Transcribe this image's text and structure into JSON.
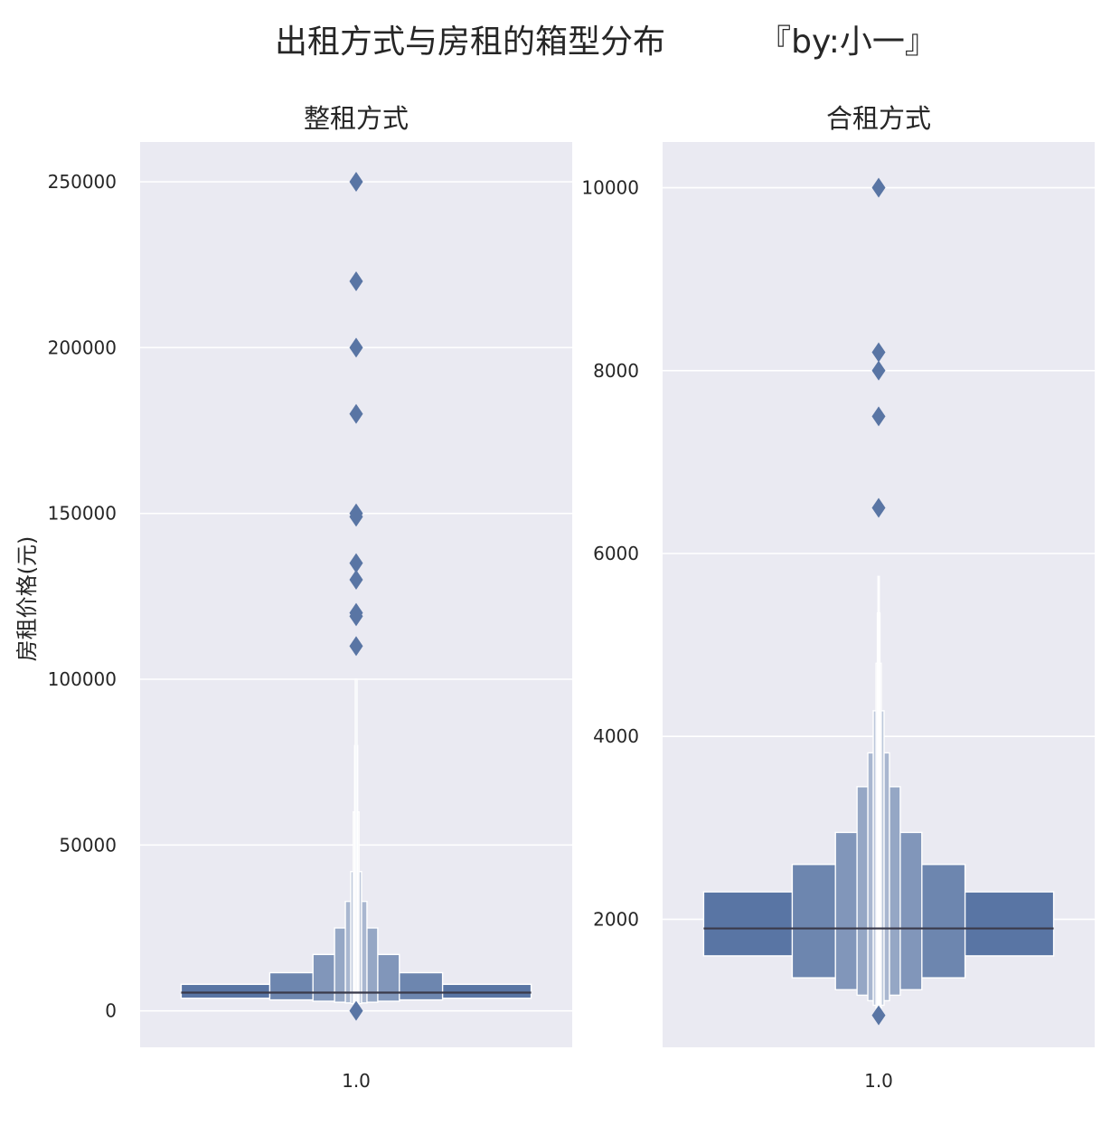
{
  "figure": {
    "title": "出租方式与房租的箱型分布",
    "author": "『by:小一』",
    "ylabel": "房租价格(元)"
  },
  "colors": {
    "background": "#eaeaf2",
    "grid": "#ffffff",
    "box_fill": "#5975a4",
    "outlier": "#5975a4",
    "median": "#3a3a4a"
  },
  "chart_data": [
    {
      "type": "boxenplot",
      "title": "整租方式",
      "xlabel": "",
      "categories": [
        "1.0"
      ],
      "ylim": [
        -11000,
        262000
      ],
      "yticks": [
        0,
        50000,
        100000,
        150000,
        200000,
        250000
      ],
      "ytick_labels": [
        "0",
        "50000",
        "100000",
        "150000",
        "200000",
        "250000"
      ],
      "grid": true,
      "median": 5500,
      "boxes": [
        {
          "low": 3800,
          "high": 8000,
          "width": 0.81
        },
        {
          "low": 3300,
          "high": 11500,
          "width": 0.4
        },
        {
          "low": 2900,
          "high": 17000,
          "width": 0.2
        },
        {
          "low": 2600,
          "high": 25000,
          "width": 0.1
        },
        {
          "low": 2400,
          "high": 33000,
          "width": 0.05
        },
        {
          "low": 2200,
          "high": 42000,
          "width": 0.025
        },
        {
          "low": 2000,
          "high": 60000,
          "width": 0.013
        },
        {
          "low": 1800,
          "high": 80000,
          "width": 0.007
        },
        {
          "low": 1600,
          "high": 100000,
          "width": 0.004
        }
      ],
      "outliers": [
        250000,
        220000,
        200000,
        180000,
        150000,
        149000,
        135000,
        130000,
        120000,
        119000,
        110000,
        0
      ]
    },
    {
      "type": "boxenplot",
      "title": "合租方式",
      "xlabel": "",
      "categories": [
        "1.0"
      ],
      "ylim": [
        600,
        10500
      ],
      "yticks": [
        2000,
        4000,
        6000,
        8000,
        10000
      ],
      "ytick_labels": [
        "2000",
        "4000",
        "6000",
        "8000",
        "10000"
      ],
      "grid": true,
      "median": 1900,
      "boxes": [
        {
          "low": 1600,
          "high": 2300,
          "width": 0.81
        },
        {
          "low": 1360,
          "high": 2600,
          "width": 0.4
        },
        {
          "low": 1230,
          "high": 2950,
          "width": 0.2
        },
        {
          "low": 1170,
          "high": 3450,
          "width": 0.1
        },
        {
          "low": 1110,
          "high": 3820,
          "width": 0.05
        },
        {
          "low": 1060,
          "high": 4280,
          "width": 0.025
        },
        {
          "low": 1030,
          "high": 4800,
          "width": 0.012
        },
        {
          "low": 1010,
          "high": 5350,
          "width": 0.006
        },
        {
          "low": 1000,
          "high": 5750,
          "width": 0.003
        }
      ],
      "outliers": [
        10000,
        8200,
        8000,
        7500,
        6500,
        950
      ]
    }
  ]
}
